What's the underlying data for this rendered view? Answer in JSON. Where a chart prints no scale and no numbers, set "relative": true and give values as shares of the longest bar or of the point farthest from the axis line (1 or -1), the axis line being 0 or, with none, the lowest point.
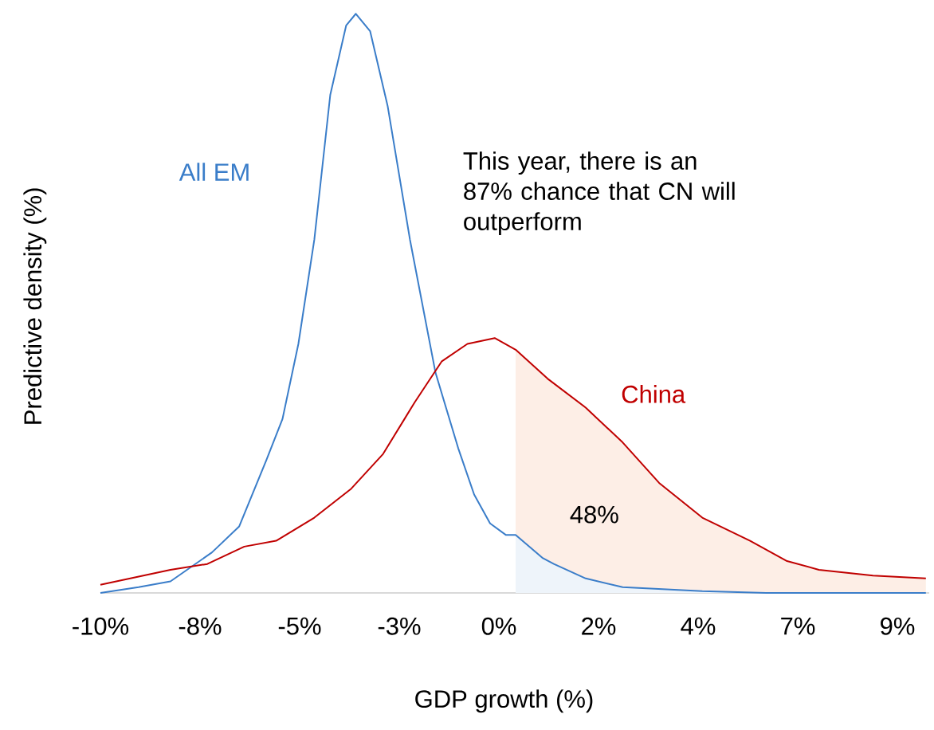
{
  "chart_data": {
    "type": "line",
    "relative": true,
    "xlabel": "GDP growth (%)",
    "ylabel": "Predictive density (%)",
    "xlim": [
      -10,
      9.76
    ],
    "xticks": [
      {
        "value": -10,
        "label": "-10%"
      },
      {
        "value": -7.625,
        "label": "-8%"
      },
      {
        "value": -5.25,
        "label": "-5%"
      },
      {
        "value": -2.875,
        "label": "-3%"
      },
      {
        "value": -0.5,
        "label": "0%"
      },
      {
        "value": 1.875,
        "label": "2%"
      },
      {
        "value": 4.25,
        "label": "4%"
      },
      {
        "value": 6.625,
        "label": "7%"
      },
      {
        "value": 9,
        "label": "9%"
      }
    ],
    "annotations": [
      "This year, there is an 87% chance that CN will outperform",
      "48%"
    ],
    "series": [
      {
        "type": "area",
        "color": "#fdeee6",
        "x": [
          -0.1,
          0.66,
          1.57,
          2.45,
          3.32,
          4.35,
          5.49,
          6.37,
          7.13,
          8.42,
          9.68
        ],
        "values": [
          0.42,
          0.37,
          0.32,
          0.26,
          0.19,
          0.13,
          0.09,
          0.055,
          0.04,
          0.03,
          0.025
        ]
      },
      {
        "type": "area",
        "color": "#eef4fa",
        "x": [
          -0.1,
          0.55,
          0.81,
          1.57,
          2.45,
          4.35,
          5.87,
          9.68
        ],
        "values": [
          0.1,
          0.06,
          0.05,
          0.025,
          0.01,
          0.003,
          0,
          0
        ]
      },
      {
        "name": "All EM",
        "color": "#3a7dc9",
        "x": [
          -10,
          -9.09,
          -8.33,
          -7.34,
          -6.69,
          -6.04,
          -5.66,
          -5.28,
          -4.9,
          -4.52,
          -4.14,
          -3.91,
          -3.57,
          -3.15,
          -2.62,
          -2.01,
          -1.47,
          -1.09,
          -0.71,
          -0.33,
          -0.1,
          0.55,
          0.81,
          1.57,
          2.45,
          4.35,
          5.87,
          9.68
        ],
        "values": [
          0,
          0.01,
          0.02,
          0.07,
          0.115,
          0.23,
          0.3,
          0.43,
          0.61,
          0.86,
          0.98,
          1,
          0.97,
          0.84,
          0.61,
          0.38,
          0.25,
          0.17,
          0.12,
          0.1,
          0.1,
          0.06,
          0.05,
          0.025,
          0.01,
          0.003,
          0,
          0
        ]
      },
      {
        "name": "China",
        "color": "#c00000",
        "x": [
          -10,
          -8.33,
          -7.45,
          -6.57,
          -5.81,
          -4.9,
          -4.02,
          -3.26,
          -2.5,
          -1.86,
          -1.25,
          -0.6,
          -0.1,
          0.66,
          1.57,
          2.45,
          3.32,
          4.35,
          5.49,
          6.37,
          7.13,
          8.42,
          9.68
        ],
        "values": [
          0.014,
          0.04,
          0.05,
          0.08,
          0.09,
          0.13,
          0.18,
          0.24,
          0.33,
          0.4,
          0.43,
          0.44,
          0.42,
          0.37,
          0.32,
          0.26,
          0.19,
          0.13,
          0.09,
          0.055,
          0.04,
          0.03,
          0.025
        ]
      }
    ]
  }
}
